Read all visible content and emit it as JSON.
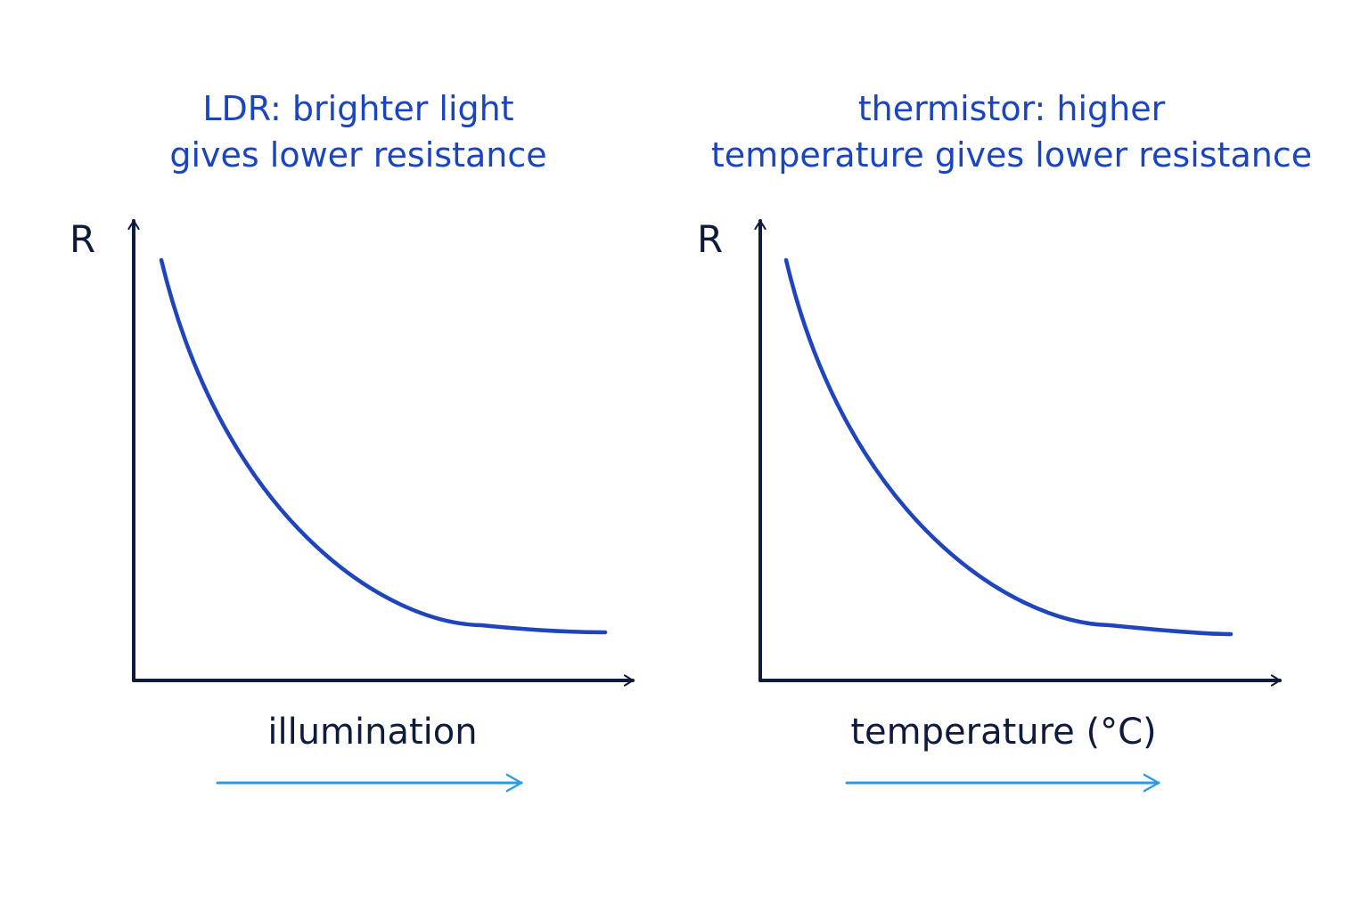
{
  "colors": {
    "title": "#1a44c0",
    "axis": "#0f1b3d",
    "curve": "#1f45bd",
    "arrow": "#2b9be8",
    "background": "#ffffff"
  },
  "panels": [
    {
      "title_line1": "LDR: brighter light",
      "title_line2": "gives lower resistance",
      "y_axis_label": "R",
      "x_axis_label": "illumination",
      "curve_shape": "decreasing-decay",
      "direction_arrow": "arrow-right"
    },
    {
      "title_line1": "thermistor: higher",
      "title_line2": "temperature gives lower resistance",
      "y_axis_label": "R",
      "x_axis_label": "temperature (°C)",
      "curve_shape": "decreasing-decay",
      "direction_arrow": "arrow-right"
    }
  ]
}
